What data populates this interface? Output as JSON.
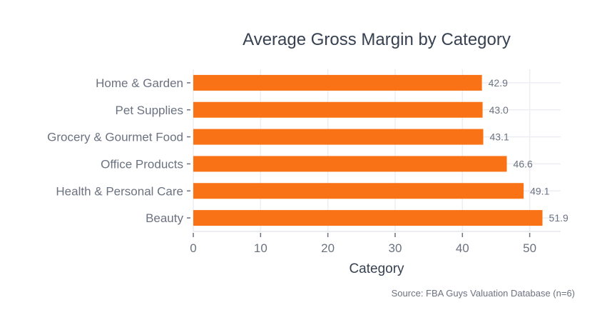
{
  "chart_data": {
    "type": "bar",
    "orientation": "horizontal",
    "title": "Average Gross Margin by Category",
    "xlabel": "Category",
    "ylabel": "",
    "source": "Source: FBA Guys Valuation Database (n=6)",
    "categories": [
      "Home & Garden",
      "Pet Supplies",
      "Grocery & Gourmet Food",
      "Office Products",
      "Health & Personal Care",
      "Beauty"
    ],
    "values": [
      42.9,
      43.0,
      43.1,
      46.6,
      49.1,
      51.9
    ],
    "data_labels": [
      "42.9",
      "43.0",
      "43.1",
      "46.6",
      "49.1",
      "51.9"
    ],
    "xlim": [
      0,
      54.6
    ],
    "xticks": [
      0,
      10,
      20,
      30,
      40,
      50
    ],
    "grid": true,
    "colors": {
      "bar": "#f97316",
      "grid": "#eceef2",
      "text": "#6b7280",
      "title": "#374151"
    }
  }
}
